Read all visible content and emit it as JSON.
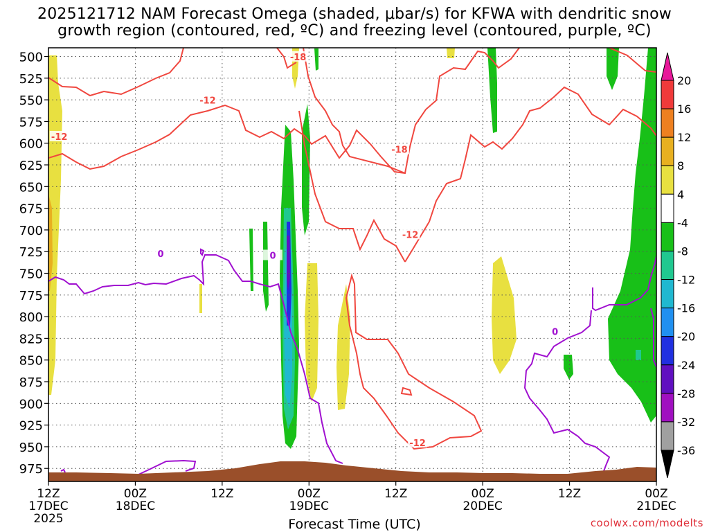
{
  "title_line1": "2025121712 NAM Forecast Omega (shaded, μbar/s) for KFWA with dendritic snow",
  "title_line2": "growth region (contoured, red, ºC) and freezing level (contoured, purple, ºC)",
  "credit": "coolwx.com/modelts",
  "colors": {
    "dgz_contour": "#f0473f",
    "freezing_contour": "#a010d0",
    "terrain": "#9a4f2a",
    "grid": "#555555"
  },
  "chart_data": {
    "type": "heatmap",
    "xlabel": "Forecast Time (UTC)",
    "ylabel": "",
    "x_ticks": [
      {
        "line1": "12Z",
        "line2": "17DEC",
        "line3": "2025"
      },
      {
        "line1": "00Z",
        "line2": "18DEC",
        "line3": ""
      },
      {
        "line1": "12Z",
        "line2": "",
        "line3": ""
      },
      {
        "line1": "00Z",
        "line2": "19DEC",
        "line3": ""
      },
      {
        "line1": "12Z",
        "line2": "",
        "line3": ""
      },
      {
        "line1": "00Z",
        "line2": "20DEC",
        "line3": ""
      },
      {
        "line1": "12Z",
        "line2": "",
        "line3": ""
      },
      {
        "line1": "00Z",
        "line2": "21DEC",
        "line3": ""
      }
    ],
    "x_range_hours": [
      0,
      84
    ],
    "y_levels_mb": [
      500,
      525,
      550,
      575,
      600,
      625,
      650,
      675,
      700,
      725,
      750,
      775,
      800,
      825,
      850,
      875,
      900,
      925,
      950,
      975
    ],
    "colorbar": {
      "labels": [
        "20",
        "16",
        "12",
        "8",
        "4",
        "-4",
        "-8",
        "-12",
        "-16",
        "-20",
        "-24",
        "-28",
        "-32",
        "-36"
      ],
      "colors": [
        "#e8189a",
        "#f03a3a",
        "#ee8020",
        "#e8b020",
        "#e8e040",
        "#ffffff",
        "#18c018",
        "#20c890",
        "#20b8d0",
        "#2090f0",
        "#2030e0",
        "#6010c0",
        "#a010c0",
        "#a0a0a0"
      ]
    },
    "contour_labels": [
      {
        "text": "-12",
        "hour": 1.5,
        "mb": 593,
        "color": "red"
      },
      {
        "text": "-12",
        "hour": 22,
        "mb": 551,
        "color": "red"
      },
      {
        "text": "-18",
        "hour": 34.5,
        "mb": 501,
        "color": "red"
      },
      {
        "text": "-18",
        "hour": 48.5,
        "mb": 608,
        "color": "red"
      },
      {
        "text": "-12",
        "hour": 50,
        "mb": 706,
        "color": "red"
      },
      {
        "text": "-12",
        "hour": 51,
        "mb": 946,
        "color": "red"
      },
      {
        "text": "0",
        "hour": 15.5,
        "mb": 728,
        "color": "purple"
      },
      {
        "text": "0",
        "hour": 31,
        "mb": 730,
        "color": "purple"
      },
      {
        "text": "0",
        "hour": 70,
        "mb": 818,
        "color": "purple"
      }
    ]
  }
}
